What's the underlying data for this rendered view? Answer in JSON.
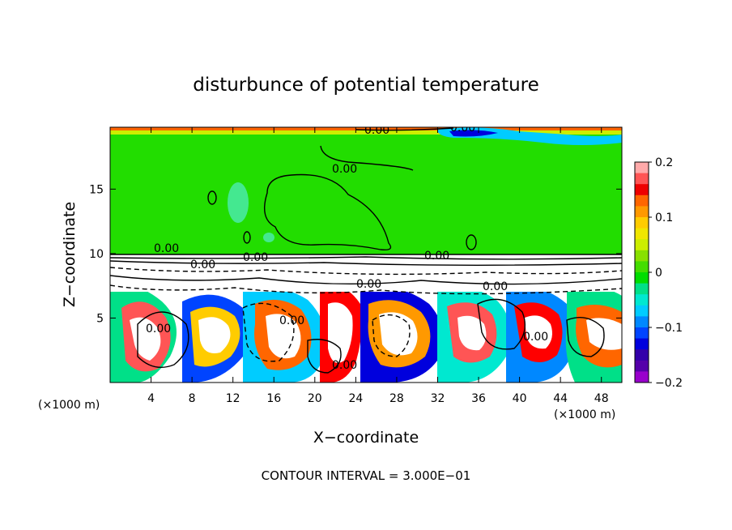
{
  "chart_data": {
    "type": "heatmap",
    "title": "disturbunce of potential temperature",
    "xlabel": "X−coordinate",
    "ylabel": "Z−coordinate",
    "x_unit_left": "(×1000 m)",
    "x_unit_right": "(×1000 m)",
    "xlim": [
      0,
      50
    ],
    "ylim": [
      0,
      19.8
    ],
    "x_ticks": [
      {
        "value": 4,
        "label": "4"
      },
      {
        "value": 8,
        "label": "8"
      },
      {
        "value": 12,
        "label": "12"
      },
      {
        "value": 16,
        "label": "16"
      },
      {
        "value": 20,
        "label": "20"
      },
      {
        "value": 24,
        "label": "24"
      },
      {
        "value": 28,
        "label": "28"
      },
      {
        "value": 32,
        "label": "32"
      },
      {
        "value": 36,
        "label": "36"
      },
      {
        "value": 40,
        "label": "40"
      },
      {
        "value": 44,
        "label": "44"
      },
      {
        "value": 48,
        "label": "48"
      }
    ],
    "y_ticks": [
      {
        "value": 5,
        "label": "5"
      },
      {
        "value": 10,
        "label": "10"
      },
      {
        "value": 15,
        "label": "15"
      }
    ],
    "colorbar": {
      "range": [
        -0.2,
        0.2
      ],
      "ticks": [
        {
          "value": 0.2,
          "label": "0.2"
        },
        {
          "value": 0.1,
          "label": "0.1"
        },
        {
          "value": 0,
          "label": "0"
        },
        {
          "value": -0.1,
          "label": "−0.1"
        },
        {
          "value": -0.2,
          "label": "−0.2"
        }
      ],
      "colors": [
        "#ffaaaa",
        "#ff5555",
        "#ee0000",
        "#ff6600",
        "#ff9900",
        "#ffcc00",
        "#f0e600",
        "#ccee00",
        "#88e000",
        "#44dd00",
        "#00dd00",
        "#00e088",
        "#00e8d0",
        "#00ccff",
        "#0088ff",
        "#0044ff",
        "#0000dd",
        "#3300aa",
        "#5500aa",
        "#9900cc"
      ]
    },
    "contour_labels": [
      "0.00",
      "0.00",
      "0.00",
      "0.00",
      "0.00",
      "0.00",
      "0.00",
      "0.00",
      "0.00",
      "0.00",
      "0.00",
      "0.00",
      "0.00"
    ],
    "contour_interval": "CONTOUR INTERVAL = 3.000E−01"
  }
}
